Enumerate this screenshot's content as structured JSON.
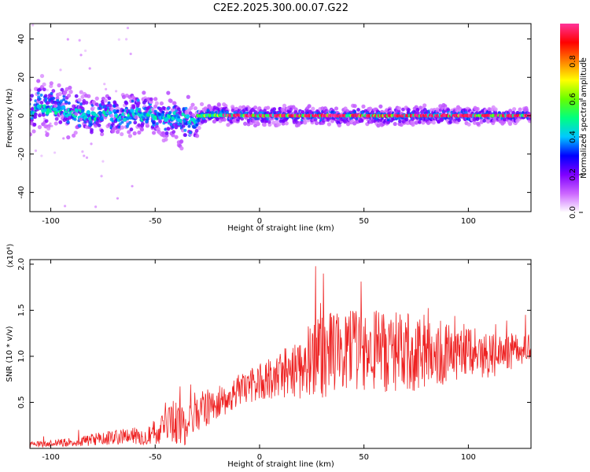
{
  "title": "C2E2.2025.300.00.07.G22",
  "chart_data": [
    {
      "type": "heatmap",
      "xlabel": "Height of straight line (km)",
      "ylabel": "Frequency (Hz)",
      "xlim": [
        -110,
        130
      ],
      "ylim": [
        -50,
        48
      ],
      "xticks": [
        -100,
        -50,
        0,
        50,
        100
      ],
      "yticks": [
        -40,
        -20,
        0,
        20,
        40
      ],
      "colorbar": {
        "label": "Normalized spectral amplitude",
        "range": [
          0,
          1
        ],
        "ticks": [
          "0.0",
          "0.2",
          "0.4",
          "0.6",
          "0.8"
        ],
        "colors": [
          "#ffffff",
          "#cc66ff",
          "#7f00ff",
          "#0000ff",
          "#00c8ff",
          "#00ff80",
          "#66ff00",
          "#ffff00",
          "#ff8000",
          "#ff0000",
          "#ff3399"
        ]
      },
      "description_points": [
        {
          "x": -100,
          "freq": 5,
          "spread": 8
        },
        {
          "x": -75,
          "freq": 0,
          "spread": 6
        },
        {
          "x": -50,
          "freq": 1,
          "spread": 7
        },
        {
          "x": -35,
          "freq": -3,
          "spread": 8
        },
        {
          "x": -25,
          "freq": 1,
          "spread": 3
        },
        {
          "x": 0,
          "freq": 0,
          "spread": 3
        },
        {
          "x": 50,
          "freq": 0,
          "spread": 3
        },
        {
          "x": 100,
          "freq": 0,
          "spread": 3
        },
        {
          "x": 130,
          "freq": 0,
          "spread": 2
        }
      ]
    },
    {
      "type": "line",
      "xlabel": "Height of straight line (km)",
      "ylabel": "SNR (10 * v/v)",
      "multiplier": "(x10⁴)",
      "xlim": [
        -110,
        130
      ],
      "ylim": [
        0,
        2.05
      ],
      "xticks": [
        -100,
        -50,
        0,
        50,
        100
      ],
      "yticks": [
        0.5,
        1.0,
        1.5,
        2.0
      ],
      "series": [
        {
          "color": "#ee2222",
          "envelope_x": [
            -110,
            -90,
            -70,
            -55,
            -45,
            -40,
            -35,
            -30,
            -20,
            -10,
            0,
            10,
            20,
            30,
            40,
            50,
            60,
            70,
            80,
            90,
            100,
            110,
            120,
            130
          ],
          "envelope_mean": [
            0.04,
            0.07,
            0.12,
            0.14,
            0.22,
            0.28,
            0.3,
            0.4,
            0.5,
            0.62,
            0.72,
            0.8,
            0.92,
            1.0,
            1.05,
            1.05,
            1.05,
            1.02,
            1.05,
            1.05,
            1.05,
            1.0,
            1.05,
            1.1
          ],
          "envelope_spread": [
            0.03,
            0.05,
            0.08,
            0.1,
            0.18,
            0.3,
            0.25,
            0.22,
            0.2,
            0.18,
            0.2,
            0.25,
            0.4,
            0.45,
            0.45,
            0.45,
            0.45,
            0.45,
            0.4,
            0.35,
            0.3,
            0.25,
            0.2,
            0.15
          ]
        }
      ]
    }
  ]
}
